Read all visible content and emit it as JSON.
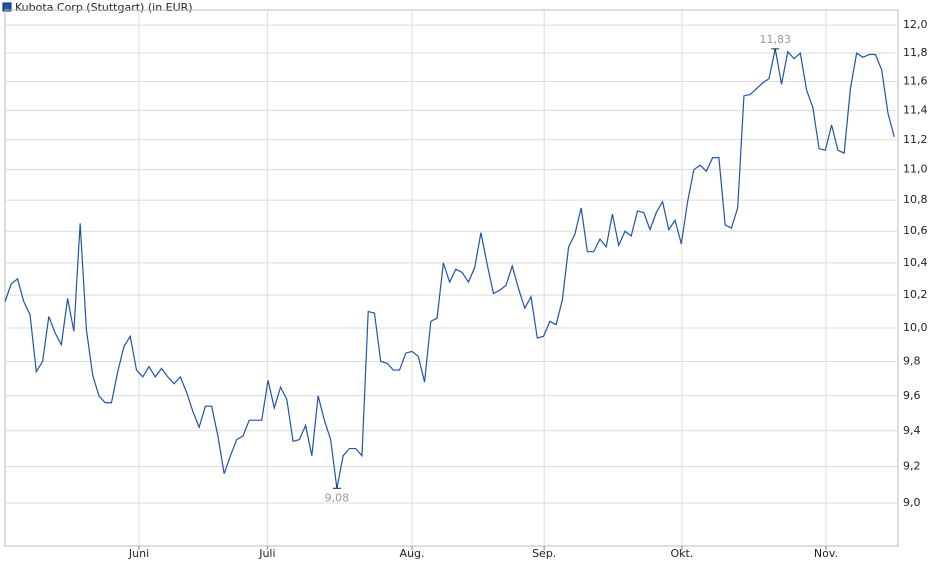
{
  "chart_data": {
    "type": "line",
    "title": "Kubota Corp (Stuttgart) (in EUR)",
    "series": [
      {
        "name": "Kubota Corp (Stuttgart) (in EUR)",
        "color": "#1f55a5",
        "values": [
          10.16,
          10.27,
          10.3,
          10.16,
          10.08,
          9.74,
          9.8,
          10.07,
          9.97,
          9.9,
          10.18,
          9.98,
          10.65,
          9.99,
          9.72,
          9.6,
          9.56,
          9.56,
          9.74,
          9.89,
          9.95,
          9.75,
          9.71,
          9.77,
          9.71,
          9.76,
          9.71,
          9.67,
          9.71,
          9.62,
          9.51,
          9.42,
          9.54,
          9.54,
          9.37,
          9.16,
          9.26,
          9.35,
          9.37,
          9.46,
          9.46,
          9.46,
          9.69,
          9.53,
          9.65,
          9.58,
          9.34,
          9.35,
          9.43,
          9.26,
          9.6,
          9.46,
          9.35,
          9.08,
          9.26,
          9.3,
          9.3,
          9.26,
          10.1,
          10.09,
          9.8,
          9.79,
          9.75,
          9.75,
          9.85,
          9.86,
          9.83,
          9.68,
          10.04,
          10.06,
          10.4,
          10.28,
          10.36,
          10.34,
          10.28,
          10.37,
          10.59,
          10.39,
          10.21,
          10.23,
          10.26,
          10.38,
          10.24,
          10.12,
          10.19,
          9.94,
          9.95,
          10.04,
          10.02,
          10.17,
          10.5,
          10.58,
          10.75,
          10.47,
          10.47,
          10.55,
          10.5,
          10.71,
          10.51,
          10.6,
          10.57,
          10.73,
          10.72,
          10.61,
          10.72,
          10.79,
          10.61,
          10.67,
          10.52,
          10.79,
          11.0,
          11.03,
          10.99,
          11.08,
          11.08,
          10.64,
          10.62,
          10.75,
          11.5,
          11.51,
          11.55,
          11.59,
          11.62,
          11.83,
          11.58,
          11.81,
          11.76,
          11.8,
          11.54,
          11.42,
          11.14,
          11.13,
          11.3,
          11.13,
          11.11,
          11.55,
          11.8,
          11.77,
          11.79,
          11.79,
          11.68,
          11.38,
          11.22
        ]
      }
    ],
    "annotations": [
      {
        "value": 11.83,
        "label": "11,83"
      },
      {
        "value": 9.08,
        "label": "9,08"
      }
    ],
    "xlim": [
      0,
      142.6
    ],
    "xticks": [
      {
        "value": 21.4,
        "label": "Juni"
      },
      {
        "value": 41.9,
        "label": "Juli"
      },
      {
        "value": 65.0,
        "label": "Aug."
      },
      {
        "value": 86.1,
        "label": "Sep."
      },
      {
        "value": 108.1,
        "label": "Okt."
      },
      {
        "value": 131.1,
        "label": "Nov."
      }
    ],
    "ylim": [
      8.77,
      12.11
    ],
    "log_scale": true,
    "grid": true,
    "yticks": [
      {
        "value": 9.0,
        "label": "9,0"
      },
      {
        "value": 9.2,
        "label": "9,2"
      },
      {
        "value": 9.4,
        "label": "9,4"
      },
      {
        "value": 9.6,
        "label": "9,6"
      },
      {
        "value": 9.8,
        "label": "9,8"
      },
      {
        "value": 10.0,
        "label": "10,0"
      },
      {
        "value": 10.2,
        "label": "10,2"
      },
      {
        "value": 10.4,
        "label": "10,4"
      },
      {
        "value": 10.6,
        "label": "10,6"
      },
      {
        "value": 10.8,
        "label": "10,8"
      },
      {
        "value": 11.0,
        "label": "11,0"
      },
      {
        "value": 11.2,
        "label": "11,2"
      },
      {
        "value": 11.4,
        "label": "11,4"
      },
      {
        "value": 11.6,
        "label": "11,6"
      },
      {
        "value": 11.8,
        "label": "11,8"
      },
      {
        "value": 12.0,
        "label": "12,0"
      }
    ]
  }
}
